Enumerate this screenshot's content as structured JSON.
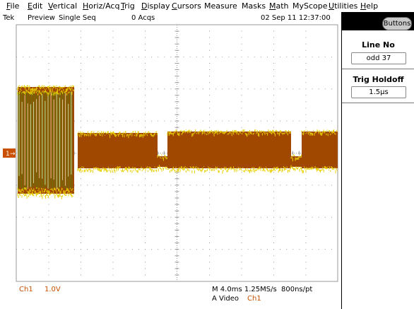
{
  "menu": {
    "items": [
      {
        "label": "File",
        "key": "F",
        "rest": "ile"
      },
      {
        "label": "Edit",
        "key": "E",
        "rest": "dit"
      },
      {
        "label": "Vertical",
        "key": "V",
        "rest": "ertical"
      },
      {
        "label": "Horiz/Acq",
        "key": "H",
        "rest": "oriz/Acq"
      },
      {
        "label": "Trig",
        "key": "T",
        "rest": "rig"
      },
      {
        "label": "Display",
        "key": "D",
        "rest": "isplay"
      },
      {
        "label": "Cursors",
        "key": "C",
        "rest": "ursors"
      },
      {
        "label": "Measure",
        "key": "",
        "rest": "Measure"
      },
      {
        "label": "Masks",
        "key": "",
        "rest": "Masks"
      },
      {
        "label": "Math",
        "key": "M",
        "rest": "ath"
      },
      {
        "label": "MyScope",
        "key": "",
        "rest": "MyScope"
      },
      {
        "label": "Utilities",
        "key": "U",
        "rest": "tilities"
      },
      {
        "label": "Help",
        "key": "H",
        "rest": "elp"
      }
    ]
  },
  "status": {
    "brand": "Tek",
    "mode": "Preview",
    "seq": "Single Seq",
    "acqs": "0 Acqs",
    "datetime": "02 Sep 11 12:37:00"
  },
  "scope": {
    "channel_marker": "1",
    "bottom": {
      "ch": "Ch1",
      "volts": "1.0V",
      "timebase": "M 4.0ms 1.25MS/s",
      "resolution": "800ns/pt",
      "trigger": "A  Video",
      "trigger_src": "Ch1"
    },
    "colors": {
      "trace_dark": "#a04800",
      "trace_light": "#e8d000",
      "trace_green": "#5a7a10",
      "grid": "#9a9a9a",
      "marker": "#c85000"
    }
  },
  "side_panel": {
    "button": "Buttons",
    "line_no_title": "Line No",
    "line_no_value": "odd 37",
    "trig_holdoff_title": "Trig Holdoff",
    "trig_holdoff_value": "1.5µs"
  }
}
